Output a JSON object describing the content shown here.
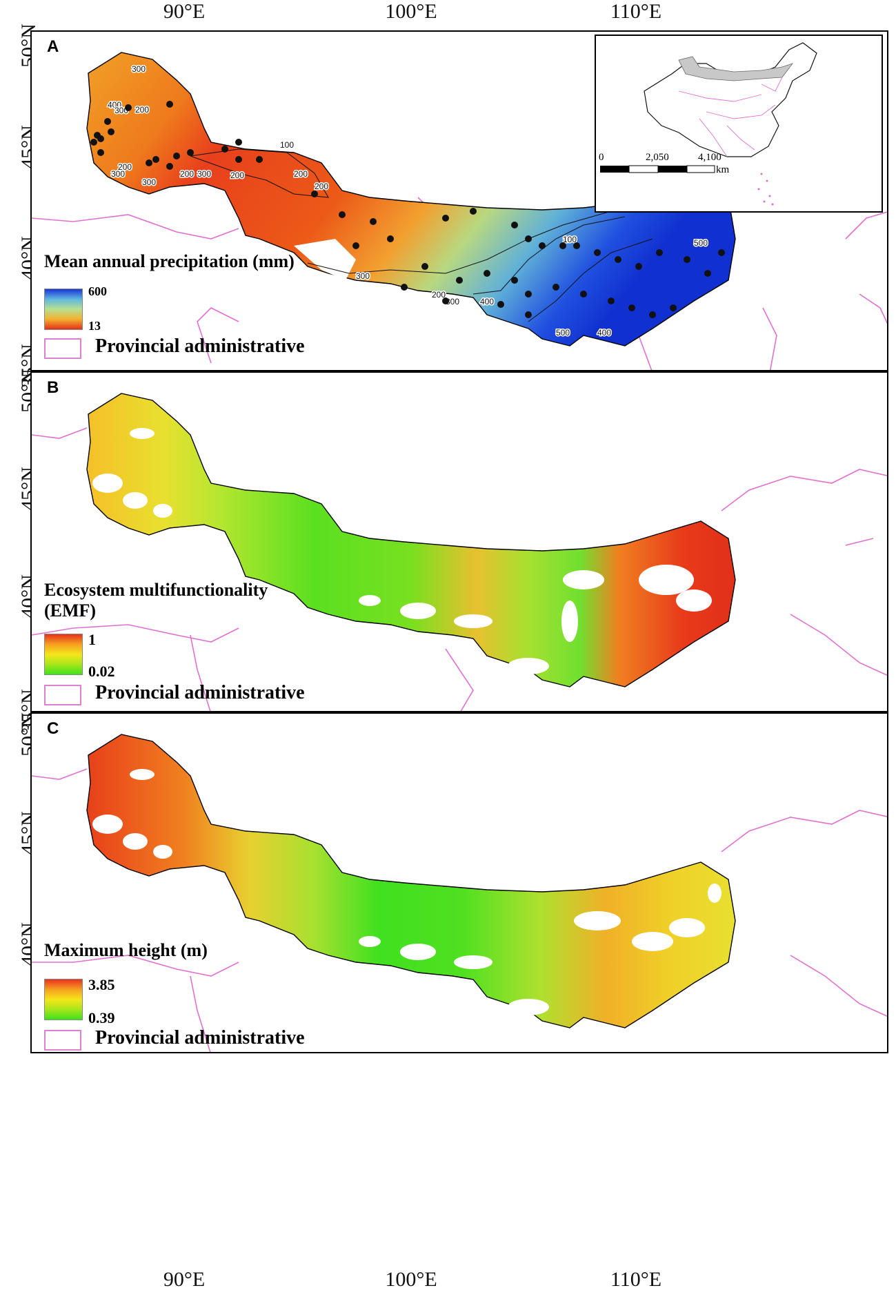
{
  "axes": {
    "longitude_ticks": [
      "90°E",
      "100°E",
      "110°E"
    ],
    "latitude_ticks": [
      "50°N",
      "45°N",
      "40°N",
      "35°N"
    ]
  },
  "panels": [
    {
      "letter": "A",
      "legend_title": "Mean annual precipitation (mm)",
      "legend_max": "600",
      "legend_min": "13",
      "provincial_label": "Provincial administrative",
      "contour_labels": [
        "300",
        "400",
        "300",
        "200",
        "200",
        "300",
        "300",
        "200",
        "300",
        "200",
        "200",
        "200",
        "100",
        "300",
        "500",
        "200",
        "300",
        "400",
        "500",
        "400",
        "100"
      ],
      "colors": {
        "high": "#1a36d6",
        "mid": "#8fd0c0",
        "low": "#e23018"
      }
    },
    {
      "letter": "B",
      "legend_title": "Ecosystem multifunctionality (EMF)",
      "legend_max": "1",
      "legend_min": "0.02",
      "provincial_label": "Provincial administrative",
      "colors": {
        "high": "#e8321a",
        "mid": "#f5e61a",
        "low": "#3ee21a"
      }
    },
    {
      "letter": "C",
      "legend_title": "Maximum height (m)",
      "legend_max": "3.85",
      "legend_min": "0.39",
      "provincial_label": "Provincial administrative",
      "colors": {
        "high": "#e8321a",
        "mid": "#f5e61a",
        "low": "#3ee21a"
      }
    }
  ],
  "inset": {
    "scale_labels": [
      "0",
      "2,050",
      "4,100"
    ],
    "scale_unit": "km"
  },
  "styles": {
    "province_border": "#e070d0",
    "region_border": "#000000",
    "site_dot": "#111111"
  }
}
